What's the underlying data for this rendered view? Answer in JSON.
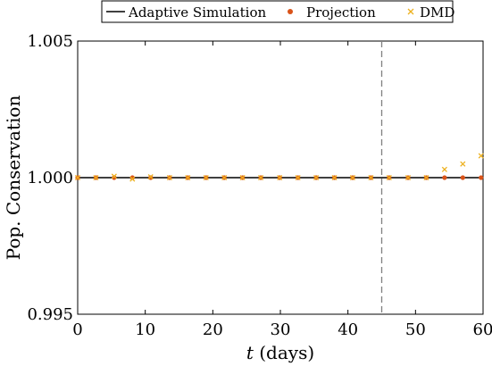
{
  "chart_data": {
    "type": "line",
    "xlabel_italic": "t",
    "xlabel_rest": " (days)",
    "ylabel": "Pop. Conservation",
    "xlim": [
      0,
      60
    ],
    "ylim": [
      0.995,
      1.005
    ],
    "xticks": [
      0,
      10,
      20,
      30,
      40,
      50,
      60
    ],
    "xtick_labels": [
      "0",
      "10",
      "20",
      "30",
      "40",
      "50",
      "60"
    ],
    "yticks": [
      0.995,
      1.0,
      1.005
    ],
    "ytick_labels": [
      "0.995",
      "1.000",
      "1.005"
    ],
    "grid": false,
    "legend_placement": "top",
    "vline_x": 45,
    "series": [
      {
        "name": "Adaptive Simulation",
        "kind": "line",
        "color": "#000000",
        "x": [
          0,
          60
        ],
        "y": [
          1.0,
          1.0
        ]
      },
      {
        "name": "Projection",
        "kind": "dot",
        "color": "#D95319",
        "x": [
          0,
          2.7,
          5.4,
          8.1,
          10.8,
          13.6,
          16.3,
          19.0,
          21.7,
          24.4,
          27.1,
          29.9,
          32.6,
          35.3,
          38.0,
          40.7,
          43.4,
          46.1,
          48.9,
          51.6,
          54.3,
          57.0,
          59.7
        ],
        "y": [
          1.0,
          1.0,
          1.0,
          1.0,
          1.0,
          1.0,
          1.0,
          1.0,
          1.0,
          1.0,
          1.0,
          1.0,
          1.0,
          1.0,
          1.0,
          1.0,
          1.0,
          1.0,
          1.0,
          1.0,
          1.0,
          1.0,
          1.0
        ]
      },
      {
        "name": "DMD",
        "kind": "cross",
        "color": "#EDB120",
        "x": [
          0,
          2.7,
          5.4,
          8.1,
          10.8,
          13.6,
          16.3,
          19.0,
          21.7,
          24.4,
          27.1,
          29.9,
          32.6,
          35.3,
          38.0,
          40.7,
          43.4,
          46.1,
          48.9,
          51.6,
          54.3,
          57.0,
          59.7
        ],
        "y": [
          1.0,
          1.0,
          1.00005,
          0.99995,
          1.00003,
          1.0,
          1.0,
          1.0,
          1.0,
          1.0,
          1.0,
          1.0,
          1.0,
          1.0,
          1.0,
          1.0,
          1.0,
          1.0,
          1.0,
          1.0,
          1.0003,
          1.0005,
          1.0008
        ]
      }
    ]
  }
}
